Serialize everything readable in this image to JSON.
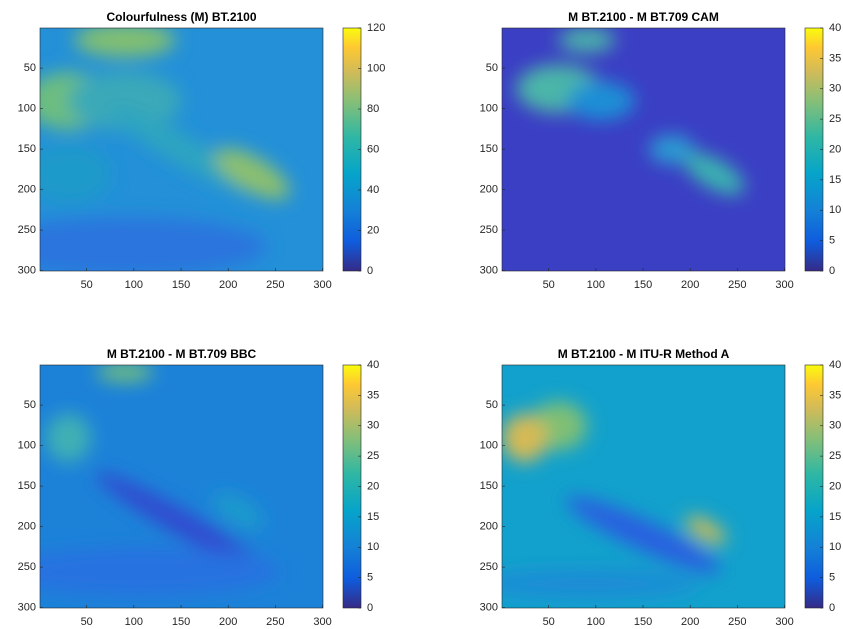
{
  "chart_data": [
    {
      "type": "heatmap",
      "title": "Colourfulness (M) BT.2100",
      "xlim": [
        0.5,
        300.5
      ],
      "ylim": [
        0.5,
        300.5
      ],
      "y_reversed": true,
      "xticks": [
        50,
        100,
        150,
        200,
        250,
        300
      ],
      "yticks": [
        50,
        100,
        150,
        200,
        250,
        300
      ],
      "clim": [
        0,
        120
      ],
      "cticks": [
        0,
        20,
        40,
        60,
        80,
        100,
        120
      ],
      "colormap": "parula"
    },
    {
      "type": "heatmap",
      "title": "M BT.2100 - M BT.709 CAM",
      "xlim": [
        0.5,
        300.5
      ],
      "ylim": [
        0.5,
        300.5
      ],
      "y_reversed": true,
      "xticks": [
        50,
        100,
        150,
        200,
        250,
        300
      ],
      "yticks": [
        50,
        100,
        150,
        200,
        250,
        300
      ],
      "clim": [
        0,
        40
      ],
      "cticks": [
        0,
        5,
        10,
        15,
        20,
        25,
        30,
        35,
        40
      ],
      "colormap": "parula"
    },
    {
      "type": "heatmap",
      "title": "M BT.2100 - M BT.709 BBC",
      "xlim": [
        0.5,
        300.5
      ],
      "ylim": [
        0.5,
        300.5
      ],
      "y_reversed": true,
      "xticks": [
        50,
        100,
        150,
        200,
        250,
        300
      ],
      "yticks": [
        50,
        100,
        150,
        200,
        250,
        300
      ],
      "clim": [
        0,
        40
      ],
      "cticks": [
        0,
        5,
        10,
        15,
        20,
        25,
        30,
        35,
        40
      ],
      "colormap": "parula"
    },
    {
      "type": "heatmap",
      "title": "M BT.2100 - M ITU-R Method A",
      "xlim": [
        0.5,
        300.5
      ],
      "ylim": [
        0.5,
        300.5
      ],
      "y_reversed": true,
      "xticks": [
        50,
        100,
        150,
        200,
        250,
        300
      ],
      "yticks": [
        50,
        100,
        150,
        200,
        250,
        300
      ],
      "clim": [
        0,
        40
      ],
      "cticks": [
        0,
        5,
        10,
        15,
        20,
        25,
        30,
        35,
        40
      ],
      "colormap": "parula"
    }
  ]
}
